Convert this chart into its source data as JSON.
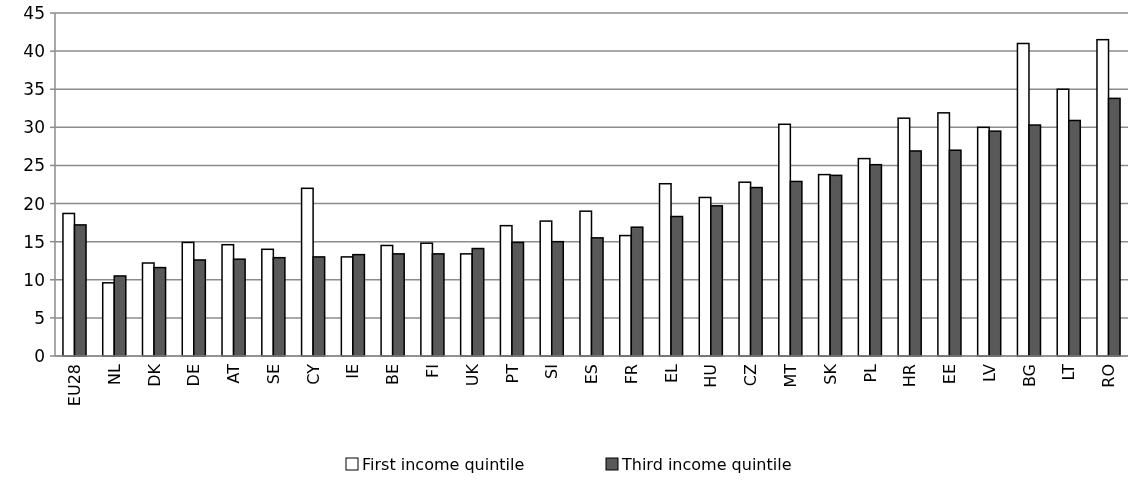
{
  "chart_data": {
    "type": "bar",
    "categories": [
      "EU28",
      "NL",
      "DK",
      "DE",
      "AT",
      "SE",
      "CY",
      "IE",
      "BE",
      "FI",
      "UK",
      "PT",
      "SI",
      "ES",
      "FR",
      "EL",
      "HU",
      "CZ",
      "MT",
      "SK",
      "PL",
      "HR",
      "EE",
      "LV",
      "BG",
      "LT",
      "RO"
    ],
    "series": [
      {
        "name": "First income quintile",
        "color": "#ffffff",
        "values": [
          18.7,
          9.6,
          12.2,
          14.9,
          14.6,
          14.0,
          22.0,
          13.0,
          14.5,
          14.8,
          13.4,
          17.1,
          17.7,
          19.0,
          15.8,
          22.6,
          20.8,
          22.8,
          30.4,
          23.8,
          25.9,
          31.2,
          31.9,
          30.0,
          41.0,
          35.0,
          41.5
        ]
      },
      {
        "name": "Third income quintile",
        "color": "#595959",
        "values": [
          17.2,
          10.5,
          11.6,
          12.6,
          12.7,
          12.9,
          13.0,
          13.3,
          13.4,
          13.4,
          14.1,
          14.9,
          15.0,
          15.5,
          16.9,
          18.3,
          19.7,
          22.1,
          22.9,
          23.7,
          25.1,
          26.9,
          27.0,
          29.5,
          30.3,
          30.9,
          33.8
        ]
      }
    ],
    "ylim": [
      0,
      45
    ],
    "yticks": [
      0,
      5,
      10,
      15,
      20,
      25,
      30,
      35,
      40,
      45
    ],
    "grid": "y",
    "legend": "bottom"
  }
}
